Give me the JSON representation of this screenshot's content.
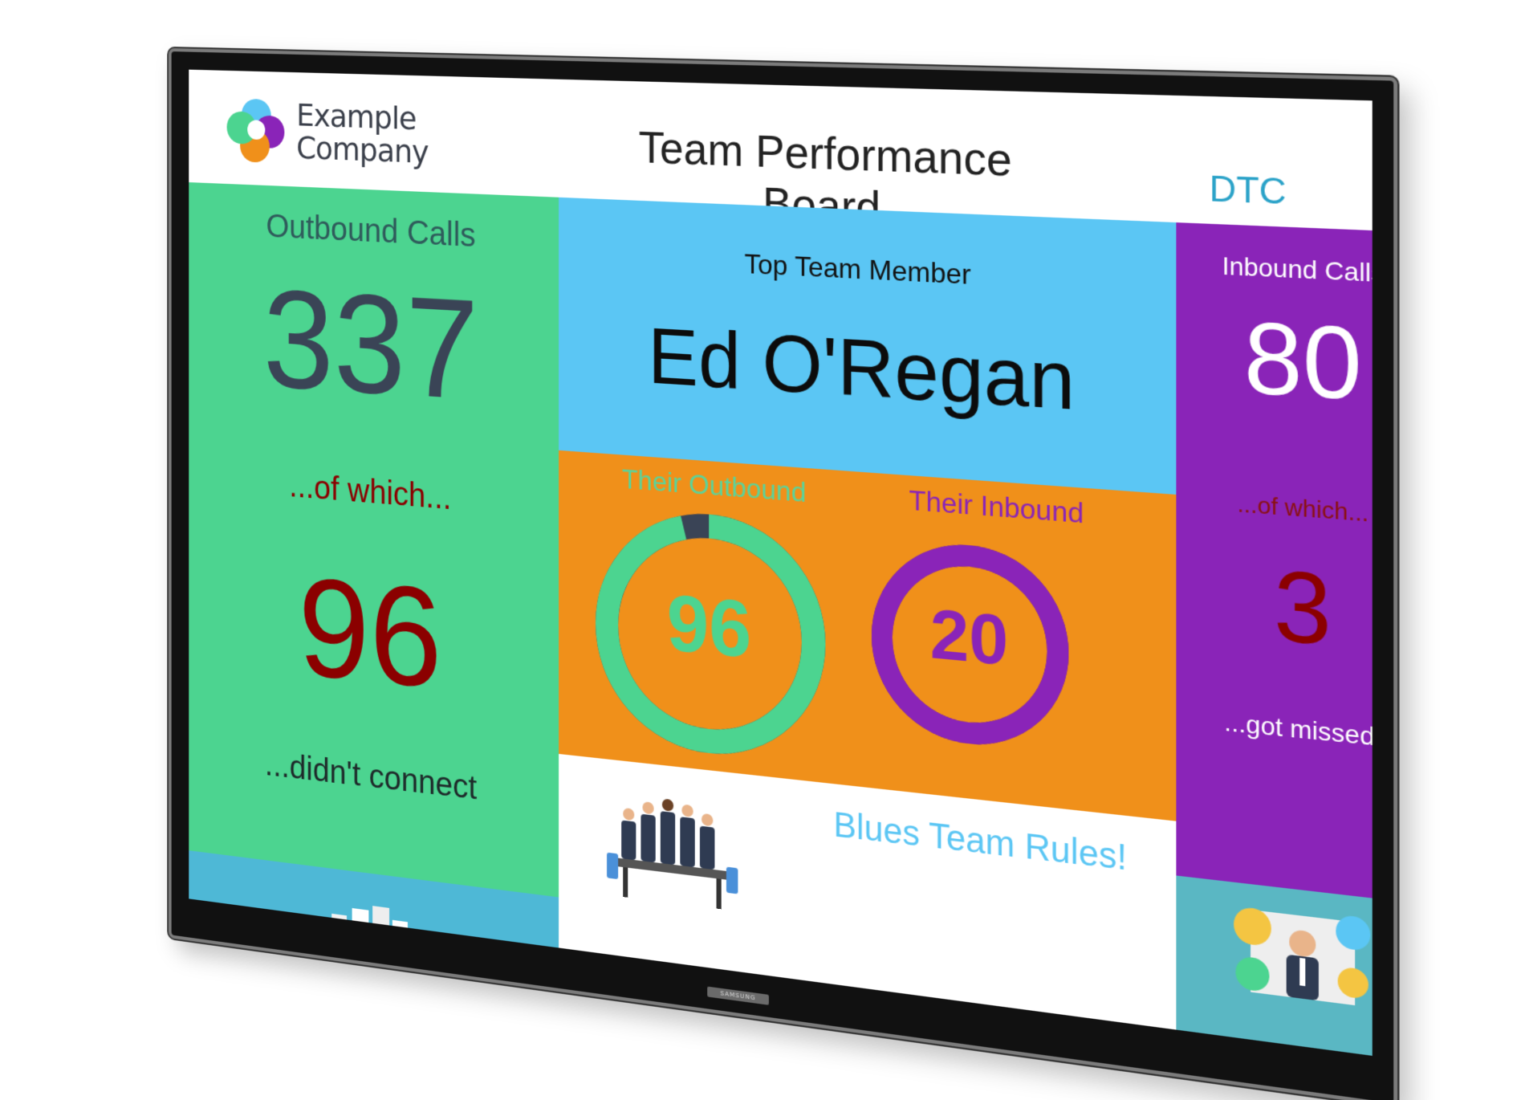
{
  "header": {
    "company_line1": "Example",
    "company_line2": "Company",
    "title": "Team Performance Board",
    "region": "DTC",
    "tv_brand": "SAMSUNG"
  },
  "outbound": {
    "label": "Outbound Calls",
    "value": "337",
    "which": "...of which...",
    "missed": "96",
    "sub": "...didn't connect"
  },
  "top_member": {
    "label": "Top Team Member",
    "name": "Ed O'Regan",
    "outbound_label": "Their Outbound",
    "outbound_value": "96",
    "outbound_fraction": 0.96,
    "inbound_label": "Their Inbound",
    "inbound_value": "20",
    "inbound_fraction": 1.0
  },
  "inbound": {
    "label": "Inbound Calls",
    "value": "80",
    "which": "...of which...",
    "missed": "3",
    "sub": "...got missed!"
  },
  "banner": {
    "text": "Blues Team Rules!"
  },
  "colors": {
    "green": "#4cd490",
    "blue": "#5bc6f4",
    "purple": "#8a24b8",
    "orange": "#f0901a",
    "teal": "#4eb8d6",
    "dark_red": "#8b0000"
  },
  "icons": {
    "logo": "swirl-logo-icon",
    "left_illustration": "boxes-illustration-icon",
    "center_illustration": "business-team-illustration-icon",
    "right_illustration": "celebration-collage-icon"
  }
}
